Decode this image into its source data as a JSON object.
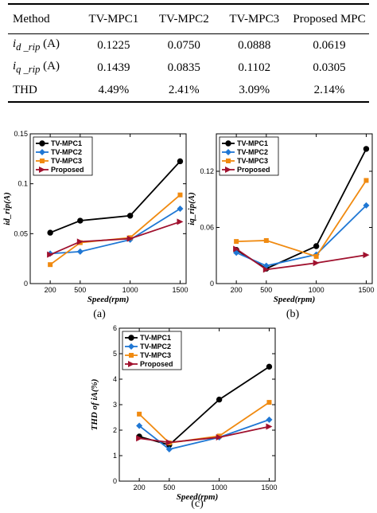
{
  "table": {
    "headers": [
      "Method",
      "TV-MPC1",
      "TV-MPC2",
      "TV-MPC3",
      "Proposed MPC"
    ],
    "rows": [
      {
        "param_main": "i",
        "param_sub": "d _rip",
        "unit": "(A)",
        "values": [
          "0.1225",
          "0.0750",
          "0.0888",
          "0.0619"
        ]
      },
      {
        "param_main": "i",
        "param_sub": "q _rip",
        "unit": "(A)",
        "values": [
          "0.1439",
          "0.0835",
          "0.1102",
          "0.0305"
        ]
      },
      {
        "label": "THD",
        "values": [
          "4.49%",
          "2.41%",
          "3.09%",
          "2.14%"
        ]
      }
    ]
  },
  "colors": {
    "TV-MPC1": "#000000",
    "TV-MPC2": "#1f77d4",
    "TV-MPC3": "#f08a10",
    "Proposed": "#a0112e"
  },
  "markers": {
    "TV-MPC1": "circle",
    "TV-MPC2": "diamond",
    "TV-MPC3": "square",
    "Proposed": "triangle-right"
  },
  "chart_data": [
    {
      "type": "line",
      "caption": "(a)",
      "xlabel": "Speed(rpm)",
      "ylabel": "id_rip(A)",
      "x": [
        200,
        500,
        1000,
        1500
      ],
      "xticks": [
        "200",
        "500",
        "1000",
        "1500"
      ],
      "xlim": [
        0,
        1560
      ],
      "ylim": [
        0,
        0.15
      ],
      "yticks": [
        0,
        0.05,
        0.1,
        0.15
      ],
      "ytick_labels": [
        "0",
        "0.05",
        "0.1",
        "0.15"
      ],
      "legend": "top-left",
      "series": [
        {
          "name": "TV-MPC1",
          "values": [
            0.051,
            0.063,
            0.068,
            0.1225
          ]
        },
        {
          "name": "TV-MPC2",
          "values": [
            0.03,
            0.032,
            0.044,
            0.075
          ]
        },
        {
          "name": "TV-MPC3",
          "values": [
            0.019,
            0.041,
            0.046,
            0.0888
          ]
        },
        {
          "name": "Proposed",
          "values": [
            0.029,
            0.042,
            0.045,
            0.0619
          ]
        }
      ]
    },
    {
      "type": "line",
      "caption": "(b)",
      "xlabel": "Speed(rpm)",
      "ylabel": "iq_rip(A)",
      "x": [
        200,
        500,
        1000,
        1500
      ],
      "xticks": [
        "200",
        "500",
        "1000",
        "1500"
      ],
      "xlim": [
        0,
        1560
      ],
      "ylim": [
        0,
        0.16
      ],
      "yticks": [
        0,
        0.06,
        0.12
      ],
      "ytick_labels": [
        "0",
        "0.06",
        "0.12"
      ],
      "legend": "top-left",
      "series": [
        {
          "name": "TV-MPC1",
          "values": [
            0.036,
            0.016,
            0.04,
            0.1439
          ]
        },
        {
          "name": "TV-MPC2",
          "values": [
            0.033,
            0.019,
            0.031,
            0.0835
          ]
        },
        {
          "name": "TV-MPC3",
          "values": [
            0.045,
            0.046,
            0.029,
            0.1102
          ]
        },
        {
          "name": "Proposed",
          "values": [
            0.037,
            0.015,
            0.022,
            0.0305
          ]
        }
      ]
    },
    {
      "type": "line",
      "caption": "(c)",
      "xlabel": "Speed(rpm)",
      "ylabel": "THD of iA(%)",
      "x": [
        200,
        500,
        1000,
        1500
      ],
      "xticks": [
        "200",
        "500",
        "1000",
        "1500"
      ],
      "xlim": [
        0,
        1560
      ],
      "ylim": [
        0,
        6
      ],
      "yticks": [
        0,
        1,
        2,
        3,
        4,
        5,
        6
      ],
      "ytick_labels": [
        "0",
        "1",
        "2",
        "3",
        "4",
        "5",
        "6"
      ],
      "legend": "top-left",
      "series": [
        {
          "name": "TV-MPC1",
          "values": [
            1.75,
            1.42,
            3.2,
            4.49
          ]
        },
        {
          "name": "TV-MPC2",
          "values": [
            2.17,
            1.25,
            1.72,
            2.41
          ]
        },
        {
          "name": "TV-MPC3",
          "values": [
            2.63,
            1.5,
            1.77,
            3.09
          ]
        },
        {
          "name": "Proposed",
          "values": [
            1.68,
            1.52,
            1.72,
            2.14
          ]
        }
      ]
    }
  ]
}
